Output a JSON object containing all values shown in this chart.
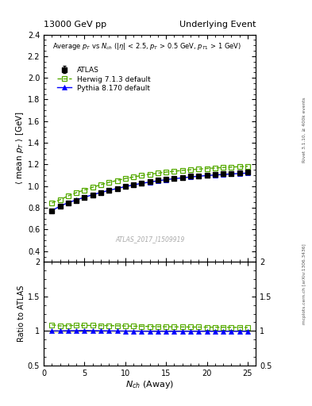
{
  "title_left": "13000 GeV pp",
  "title_right": "Underlying Event",
  "right_label_top": "Rivet 3.1.10, ≥ 400k events",
  "right_label_bottom": "mcplots.cern.ch [arXiv:1306.3436]",
  "annotation": "ATLAS_2017_I1509919",
  "xlabel": "N_{ch} (Away)",
  "ylim_main": [
    0.3,
    2.4
  ],
  "ylim_ratio": [
    0.5,
    2.0
  ],
  "xlim": [
    0,
    26
  ],
  "atlas_x": [
    1,
    2,
    3,
    4,
    5,
    6,
    7,
    8,
    9,
    10,
    11,
    12,
    13,
    14,
    15,
    16,
    17,
    18,
    19,
    20,
    21,
    22,
    23,
    24,
    25
  ],
  "atlas_y": [
    0.775,
    0.815,
    0.845,
    0.87,
    0.893,
    0.918,
    0.94,
    0.96,
    0.98,
    0.998,
    1.015,
    1.03,
    1.043,
    1.055,
    1.065,
    1.075,
    1.082,
    1.09,
    1.097,
    1.103,
    1.108,
    1.113,
    1.118,
    1.122,
    1.127
  ],
  "atlas_yerr": [
    0.012,
    0.009,
    0.008,
    0.007,
    0.006,
    0.006,
    0.005,
    0.005,
    0.005,
    0.005,
    0.005,
    0.005,
    0.005,
    0.005,
    0.005,
    0.005,
    0.005,
    0.005,
    0.005,
    0.005,
    0.005,
    0.005,
    0.005,
    0.005,
    0.005
  ],
  "herwig_x": [
    1,
    2,
    3,
    4,
    5,
    6,
    7,
    8,
    9,
    10,
    11,
    12,
    13,
    14,
    15,
    16,
    17,
    18,
    19,
    20,
    21,
    22,
    23,
    24,
    25
  ],
  "herwig_y": [
    0.845,
    0.875,
    0.91,
    0.94,
    0.965,
    0.99,
    1.013,
    1.035,
    1.053,
    1.07,
    1.085,
    1.098,
    1.11,
    1.12,
    1.13,
    1.138,
    1.145,
    1.152,
    1.158,
    1.163,
    1.168,
    1.172,
    1.176,
    1.18,
    1.183
  ],
  "pythia_x": [
    1,
    2,
    3,
    4,
    5,
    6,
    7,
    8,
    9,
    10,
    11,
    12,
    13,
    14,
    15,
    16,
    17,
    18,
    19,
    20,
    21,
    22,
    23,
    24,
    25
  ],
  "pythia_y": [
    0.775,
    0.815,
    0.848,
    0.873,
    0.898,
    0.921,
    0.942,
    0.961,
    0.979,
    0.996,
    1.012,
    1.026,
    1.038,
    1.05,
    1.06,
    1.069,
    1.077,
    1.085,
    1.092,
    1.098,
    1.103,
    1.108,
    1.113,
    1.117,
    1.121
  ],
  "atlas_color": "#000000",
  "herwig_color": "#55aa00",
  "pythia_color": "#0000ff",
  "atlas_band_color": "#ffff99",
  "herwig_ratio": [
    1.09,
    1.073,
    1.077,
    1.08,
    1.08,
    1.079,
    1.078,
    1.078,
    1.075,
    1.072,
    1.069,
    1.067,
    1.065,
    1.062,
    1.061,
    1.059,
    1.058,
    1.057,
    1.056,
    1.055,
    1.054,
    1.053,
    1.052,
    1.051,
    1.05
  ],
  "pythia_ratio": [
    1.0,
    1.0,
    1.003,
    1.003,
    1.006,
    1.003,
    1.002,
    1.001,
    0.999,
    0.998,
    0.997,
    0.996,
    0.995,
    0.995,
    0.995,
    0.994,
    0.995,
    0.995,
    0.995,
    0.995,
    0.995,
    0.995,
    0.995,
    0.995,
    0.994
  ],
  "yticks_main": [
    0.4,
    0.6,
    0.8,
    1.0,
    1.2,
    1.4,
    1.6,
    1.8,
    2.0,
    2.2,
    2.4
  ],
  "yticks_ratio": [
    0.5,
    1.0,
    1.5,
    2.0
  ]
}
